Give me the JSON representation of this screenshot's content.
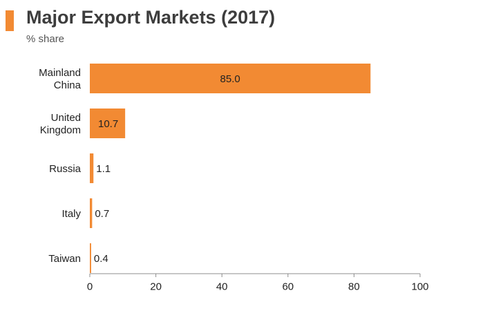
{
  "chart_data": {
    "type": "bar",
    "orientation": "horizontal",
    "title": "Major Export Markets (2017)",
    "subtitle": "% share",
    "categories": [
      [
        "Mainland",
        "China"
      ],
      [
        "United",
        "Kingdom"
      ],
      [
        "Russia"
      ],
      [
        "Italy"
      ],
      [
        "Taiwan"
      ]
    ],
    "values": [
      85.0,
      10.7,
      1.1,
      0.7,
      0.4
    ],
    "value_labels": [
      "85.0",
      "10.7",
      "1.1",
      "0.7",
      "0.4"
    ],
    "xlim": [
      0,
      100
    ],
    "xticks": [
      0,
      20,
      40,
      60,
      80,
      100
    ],
    "grid": false,
    "bar_color": "#f28a33",
    "accent_color": "#f28a33"
  }
}
